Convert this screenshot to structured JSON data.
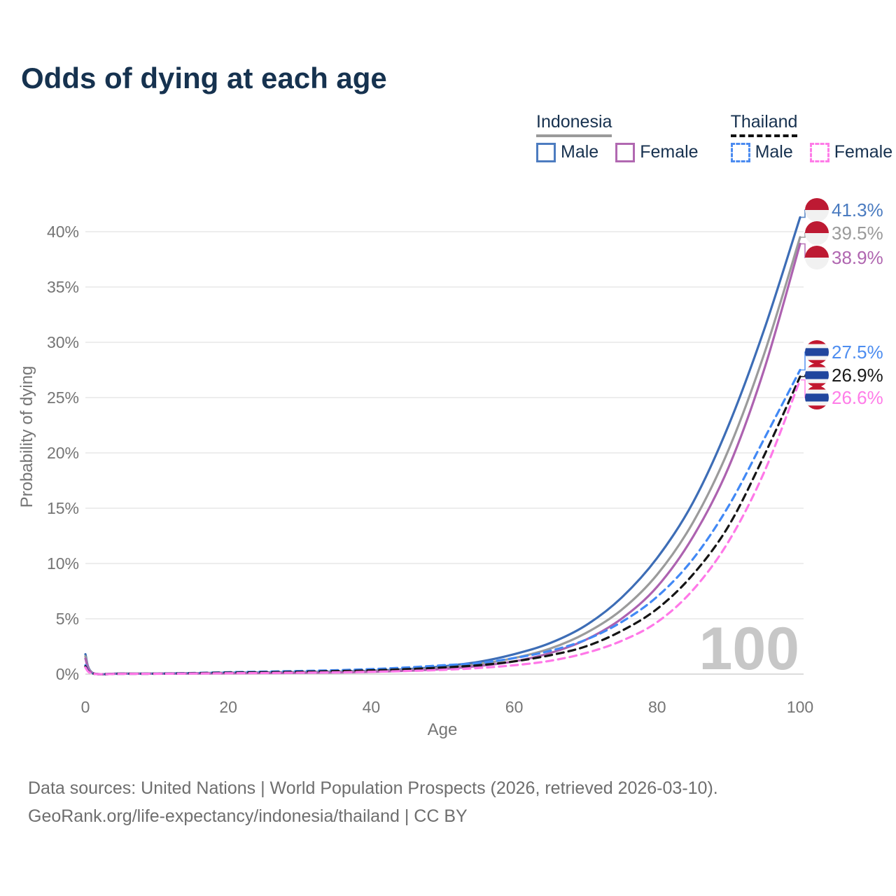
{
  "title": "Odds of dying at each age",
  "watermark": "100",
  "legend": {
    "groups": [
      {
        "name": "Indonesia",
        "underline_style": "solid",
        "underline_color": "#9a9a9a",
        "items": [
          {
            "label": "Male",
            "color": "#4d7cc0",
            "dash": false
          },
          {
            "label": "Female",
            "color": "#b168b1",
            "dash": false
          }
        ]
      },
      {
        "name": "Thailand",
        "underline_style": "dashed",
        "underline_color": "#111111",
        "items": [
          {
            "label": "Male",
            "color": "#4b8bf0",
            "dash": true
          },
          {
            "label": "Female",
            "color": "#ff7ce8",
            "dash": true
          }
        ]
      }
    ]
  },
  "footer": {
    "line1": "Data sources: United Nations | World Population Prospects (2026, retrieved 2026-03-10).",
    "line2": "GeoRank.org/life-expectancy/indonesia/thailand | CC BY"
  },
  "flags": {
    "indonesia": {
      "red": "#bd1a33",
      "white": "#f1f1f1"
    },
    "thailand": {
      "red": "#c2172f",
      "white": "#f4f4f4",
      "blue": "#21469e"
    }
  },
  "chart_data": {
    "type": "line",
    "title": "Odds of dying at each age",
    "xlabel": "Age",
    "ylabel": "Probability of dying",
    "xlim": [
      0,
      100
    ],
    "ylim": [
      0,
      43
    ],
    "grid": true,
    "legend_position": "top-right",
    "x_ticks": [
      0,
      20,
      40,
      60,
      80,
      100
    ],
    "y_ticks": [
      0,
      5,
      10,
      15,
      20,
      25,
      30,
      35,
      40
    ],
    "y_tick_suffix": "%",
    "age_indicator": "100",
    "x": [
      0,
      1,
      5,
      10,
      15,
      20,
      25,
      30,
      35,
      40,
      45,
      50,
      55,
      60,
      65,
      70,
      75,
      80,
      85,
      90,
      95,
      100
    ],
    "series": [
      {
        "name": "Indonesia Male",
        "country": "indonesia",
        "sex": "Male",
        "line_style": "solid",
        "color": "#3d6db6",
        "label_color": "#4a7bc0",
        "end_label": "41.3%",
        "end_value": 41.3,
        "values": [
          1.8,
          0.12,
          0.06,
          0.06,
          0.08,
          0.12,
          0.15,
          0.18,
          0.22,
          0.3,
          0.45,
          0.7,
          1.1,
          1.8,
          2.8,
          4.4,
          6.9,
          10.5,
          15.5,
          22.5,
          31.2,
          41.3
        ]
      },
      {
        "name": "Indonesia Both sexes",
        "country": "indonesia",
        "sex": "Both",
        "line_style": "solid",
        "color": "#9b9b9b",
        "label_color": "#9a9a9a",
        "end_label": "39.5%",
        "end_value": 39.5,
        "values": [
          1.6,
          0.11,
          0.05,
          0.05,
          0.07,
          0.1,
          0.12,
          0.15,
          0.18,
          0.25,
          0.37,
          0.57,
          0.9,
          1.45,
          2.3,
          3.7,
          5.8,
          9.0,
          13.7,
          20.3,
          29.0,
          39.5
        ]
      },
      {
        "name": "Indonesia Female",
        "country": "indonesia",
        "sex": "Female",
        "line_style": "solid",
        "color": "#ad62b0",
        "label_color": "#b066b0",
        "end_label": "38.9%",
        "end_value": 38.9,
        "values": [
          1.4,
          0.1,
          0.04,
          0.04,
          0.05,
          0.07,
          0.09,
          0.11,
          0.14,
          0.2,
          0.3,
          0.46,
          0.73,
          1.15,
          1.9,
          3.1,
          5.0,
          7.9,
          12.4,
          18.7,
          27.6,
          38.9
        ]
      },
      {
        "name": "Thailand Male",
        "country": "thailand",
        "sex": "Male",
        "line_style": "dashed",
        "color": "#4289f5",
        "label_color": "#4d8df0",
        "end_label": "27.5%",
        "end_value": 27.5,
        "values": [
          0.8,
          0.06,
          0.03,
          0.04,
          0.1,
          0.17,
          0.22,
          0.28,
          0.35,
          0.45,
          0.6,
          0.8,
          1.0,
          1.45,
          2.1,
          3.1,
          4.7,
          7.0,
          10.4,
          15.2,
          21.3,
          27.5
        ]
      },
      {
        "name": "Thailand Both sexes",
        "country": "thailand",
        "sex": "Both",
        "line_style": "dashed",
        "color": "#151515",
        "label_color": "#1a1a1a",
        "end_label": "26.9%",
        "end_value": 26.9,
        "values": [
          0.7,
          0.05,
          0.03,
          0.035,
          0.08,
          0.13,
          0.17,
          0.21,
          0.27,
          0.34,
          0.45,
          0.6,
          0.8,
          1.15,
          1.7,
          2.5,
          3.9,
          5.9,
          9.0,
          13.4,
          19.8,
          26.9
        ]
      },
      {
        "name": "Thailand Female",
        "country": "thailand",
        "sex": "Female",
        "line_style": "dashed",
        "color": "#ff78e8",
        "label_color": "#ff7ce8",
        "end_label": "26.6%",
        "end_value": 26.6,
        "values": [
          0.6,
          0.04,
          0.02,
          0.03,
          0.05,
          0.08,
          0.1,
          0.13,
          0.16,
          0.21,
          0.28,
          0.38,
          0.55,
          0.8,
          1.2,
          1.9,
          3.0,
          4.7,
          7.6,
          12.0,
          18.3,
          26.6
        ]
      }
    ]
  }
}
